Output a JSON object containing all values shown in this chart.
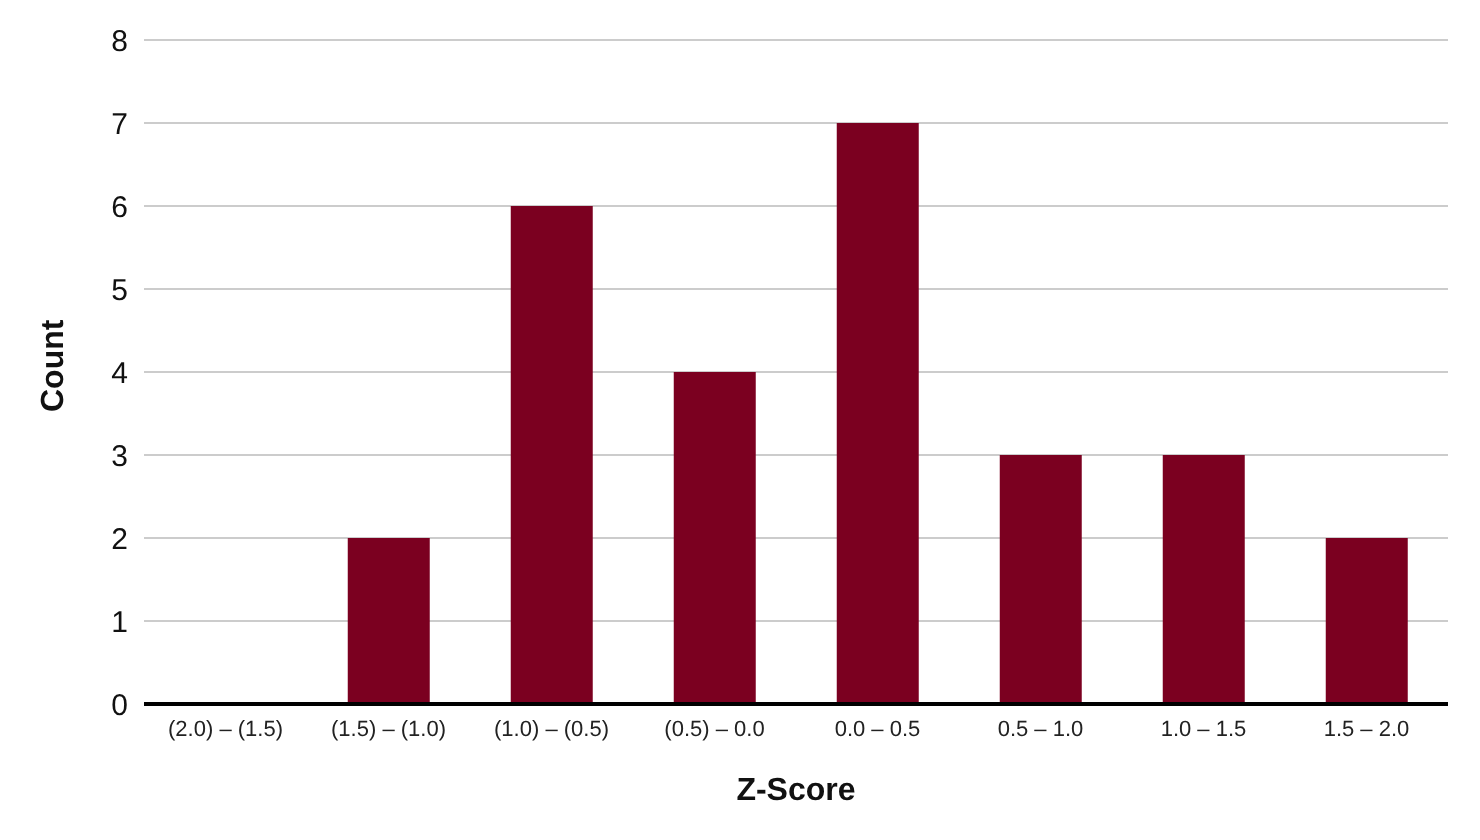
{
  "chart_data": {
    "type": "bar",
    "xlabel": "Z-Score",
    "ylabel": "Count",
    "categories": [
      "(2.0) – (1.5)",
      "(1.5) – (1.0)",
      "(1.0) – (0.5)",
      "(0.5) – 0.0",
      "0.0 – 0.5",
      "0.5 – 1.0",
      "1.0 – 1.5",
      "1.5 – 2.0"
    ],
    "values": [
      0,
      2,
      6,
      4,
      7,
      3,
      3,
      2
    ],
    "color": "#7b0020",
    "ylim": [
      0,
      8
    ],
    "yticks": [
      0,
      1,
      2,
      3,
      4,
      5,
      6,
      7,
      8
    ],
    "grid": "y",
    "legend": false
  }
}
